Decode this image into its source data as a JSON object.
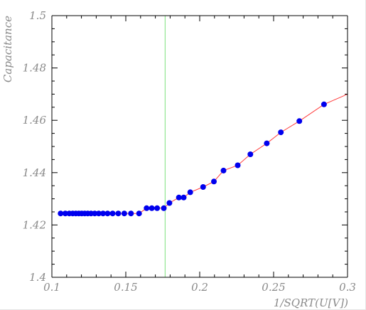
{
  "chart_data": {
    "type": "scatter",
    "xlabel": "1/SQRT(U[V])",
    "ylabel": "Capacitance",
    "xlim": [
      0.1,
      0.3
    ],
    "ylim": [
      1.4,
      1.5
    ],
    "x_ticks": [
      "0.1",
      "0.15",
      "0.2",
      "0.25",
      "0.3"
    ],
    "y_ticks": [
      "1.4",
      "1.42",
      "1.44",
      "1.46",
      "1.48",
      "1.5"
    ],
    "grid": false,
    "legend": "none",
    "vertical_marker_x": 0.1766,
    "colors": {
      "points": "#0000ee",
      "line": "#ff3b3b",
      "marker_line": "#7fe07f",
      "axis": "#000000",
      "text": "#8a8a8a"
    },
    "series": [
      {
        "x": [
          0.1059,
          0.1091,
          0.1118,
          0.1141,
          0.1162,
          0.1182,
          0.1202,
          0.1222,
          0.1243,
          0.1265,
          0.129,
          0.1317,
          0.1346,
          0.1377,
          0.1411,
          0.1449,
          0.149,
          0.1535,
          0.159,
          0.1641,
          0.1676,
          0.1712,
          0.1757,
          0.1795,
          0.1859,
          0.1892,
          0.1936,
          0.2023,
          0.2096,
          0.2161,
          0.2257,
          0.2343,
          0.2454,
          0.2549,
          0.2674,
          0.2841
        ],
        "y": [
          1.4244,
          1.4244,
          1.4244,
          1.4244,
          1.4244,
          1.4244,
          1.4244,
          1.4244,
          1.4244,
          1.4244,
          1.4244,
          1.4244,
          1.4244,
          1.4244,
          1.4244,
          1.4244,
          1.4244,
          1.4244,
          1.4244,
          1.4264,
          1.4264,
          1.4264,
          1.4264,
          1.4284,
          1.4305,
          1.4305,
          1.4325,
          1.4345,
          1.4366,
          1.4408,
          1.4428,
          1.447,
          1.4512,
          1.4554,
          1.4597,
          1.4661
        ],
        "line_end": [
          0.3,
          1.47
        ]
      }
    ]
  }
}
